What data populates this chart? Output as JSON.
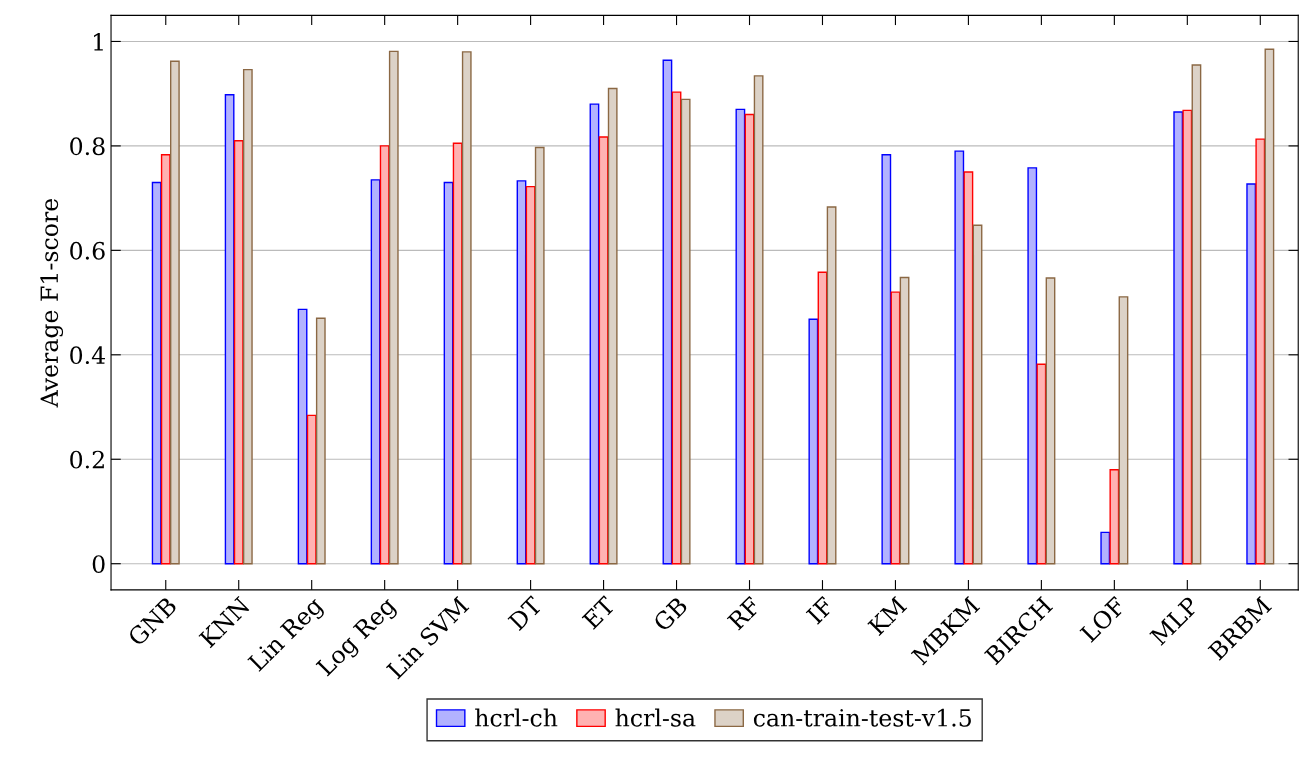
{
  "chart_data": {
    "type": "bar",
    "ylabel": "Average F1-score",
    "categories": [
      "GNB",
      "KNN",
      "Lin Reg",
      "Log Reg",
      "Lin SVM",
      "DT",
      "ET",
      "GB",
      "RF",
      "IF",
      "KM",
      "MBKM",
      "BIRCH",
      "LOF",
      "MLP",
      "BRBM"
    ],
    "series": [
      {
        "name": "hcrl-ch",
        "color": "#0000ff",
        "values": [
          0.73,
          0.898,
          0.487,
          0.735,
          0.73,
          0.733,
          0.88,
          0.964,
          0.87,
          0.468,
          0.783,
          0.79,
          0.758,
          0.06,
          0.865,
          0.727
        ]
      },
      {
        "name": "hcrl-sa",
        "color": "#ff0000",
        "values": [
          0.783,
          0.81,
          0.284,
          0.8,
          0.805,
          0.722,
          0.817,
          0.903,
          0.86,
          0.558,
          0.52,
          0.75,
          0.382,
          0.18,
          0.868,
          0.813
        ]
      },
      {
        "name": "can-train-test-v1.5",
        "color": "#8b6844",
        "values": [
          0.962,
          0.946,
          0.47,
          0.981,
          0.98,
          0.797,
          0.91,
          0.889,
          0.934,
          0.683,
          0.548,
          0.648,
          0.547,
          0.511,
          0.955,
          0.985
        ]
      }
    ],
    "ylim": [
      -0.05,
      1.05
    ],
    "yticks": [
      0,
      0.2,
      0.4,
      0.6,
      0.8,
      1
    ],
    "grid": "y",
    "legend": "bottom"
  }
}
